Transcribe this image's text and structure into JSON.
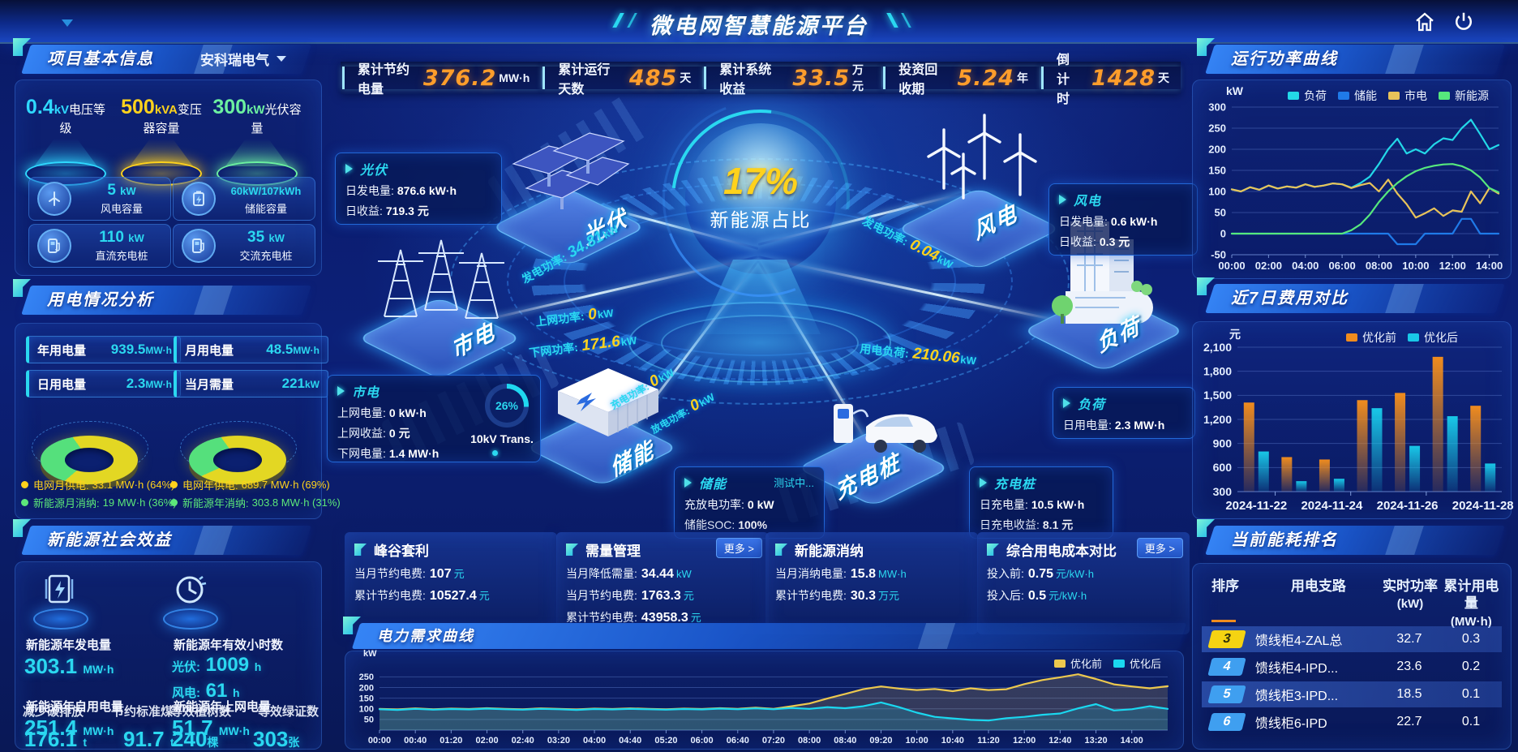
{
  "header": {
    "title": "微电网智慧能源平台"
  },
  "kpi_bar": [
    {
      "label": "累计节约电量",
      "value": "376.2",
      "unit": "MW·h"
    },
    {
      "label": "累计运行天数",
      "value": "485",
      "unit": "天"
    },
    {
      "label": "累计系统收益",
      "value": "33.5",
      "unit": "万元"
    },
    {
      "label": "投资回收期",
      "value": "5.24",
      "unit": "年"
    },
    {
      "label": "倒计时",
      "value": "1428",
      "unit": "天"
    }
  ],
  "project_info": {
    "title": "项目基本信息",
    "company": "安科瑞电气",
    "podiums": [
      {
        "value": "0.4",
        "unit": "kV",
        "label": "电压等级",
        "color": "#2fd9ff"
      },
      {
        "value": "500",
        "unit": "kVA",
        "label": "变压器容量",
        "color": "#ffd21c"
      },
      {
        "value": "300",
        "unit": "kW",
        "label": "光伏容量",
        "color": "#6cf0a0"
      }
    ],
    "cards": [
      {
        "icon": "wind-turbine-icon",
        "value": "5",
        "unit": "kW",
        "label": "风电容量"
      },
      {
        "icon": "battery-icon",
        "value": "60kW/107kWh",
        "unit": "",
        "label": "储能容量"
      },
      {
        "icon": "dc-charger-icon",
        "value": "110",
        "unit": "kW",
        "label": "直流充电桩"
      },
      {
        "icon": "ac-charger-icon",
        "value": "35",
        "unit": "kW",
        "label": "交流充电桩"
      }
    ]
  },
  "usage": {
    "title": "用电情况分析",
    "stats": [
      {
        "label": "年用电量",
        "value": "939.5",
        "unit": "MW·h"
      },
      {
        "label": "月用电量",
        "value": "48.5",
        "unit": "MW·h"
      },
      {
        "label": "日用电量",
        "value": "2.3",
        "unit": "MW·h"
      },
      {
        "label": "当月需量",
        "value": "221",
        "unit": "kW"
      }
    ],
    "legends": [
      {
        "label": "电网月供电:",
        "value": "33.1 MW·h (64%)",
        "color": "#ffd21c"
      },
      {
        "label": "新能源月消纳:",
        "value": "19 MW·h (36%)",
        "color": "#5ce87a"
      },
      {
        "label": "电网年供电:",
        "value": "689.7 MW·h (69%)",
        "color": "#ffd21c"
      },
      {
        "label": "新能源年消纳:",
        "value": "303.8 MW·h (31%)",
        "color": "#5ce87a"
      }
    ]
  },
  "benefits": {
    "title": "新能源社会效益",
    "gen": {
      "label": "新能源年发电量",
      "value": "303.1",
      "unit": "MW·h"
    },
    "hours": {
      "label": "新能源年有效小时数",
      "pv_k": "光伏:",
      "pv_v": "1009",
      "pv_u": "h",
      "wind_k": "风电:",
      "wind_v": "61",
      "wind_u": "h"
    },
    "self": {
      "label": "新能源年自用电量",
      "value": "251.4",
      "unit": "MW·h",
      "alt_label": "减少碳排放",
      "alt_value": "176.1",
      "alt_unit": "t",
      "alt2_label": "节约标准煤",
      "alt2_value": "91.7",
      "alt2_unit": "t"
    },
    "grid": {
      "label": "新能源年上网电量",
      "value": "51.7",
      "unit": "MW·h",
      "alt_label": "等效植树数",
      "alt_value": "240",
      "alt_unit": "棵",
      "alt2_label": "等效绿证数",
      "alt2_value": "303",
      "alt2_unit": "张"
    }
  },
  "center": {
    "percent": "17%",
    "percent_label": "新能源占比",
    "nodes": [
      "光伏",
      "风电",
      "市电",
      "储能",
      "负荷",
      "充电桩"
    ],
    "cards": {
      "pv": {
        "title": "光伏",
        "rows": [
          {
            "k": "日发电量:",
            "v": "876.6 kW·h"
          },
          {
            "k": "日收益:",
            "v": "719.3 元"
          }
        ]
      },
      "wind": {
        "title": "风电",
        "rows": [
          {
            "k": "日发电量:",
            "v": "0.6 kW·h"
          },
          {
            "k": "日收益:",
            "v": "0.3 元"
          }
        ]
      },
      "grid": {
        "title": "市电",
        "rows": [
          {
            "k": "上网电量:",
            "v": "0 kW·h"
          },
          {
            "k": "上网收益:",
            "v": "0 元"
          },
          {
            "k": "下网电量:",
            "v": "1.4 MW·h"
          }
        ],
        "gauge": "26%",
        "gauge_value": 26,
        "gauge_label": "10kV Trans."
      },
      "storage": {
        "title": "储能",
        "status": "测试中...",
        "rows": [
          {
            "k": "充放电功率:",
            "v": "0 kW"
          },
          {
            "k": "储能SOC:",
            "v": "100%"
          }
        ]
      },
      "load": {
        "title": "负荷",
        "rows": [
          {
            "k": "日用电量:",
            "v": "2.3 MW·h"
          }
        ]
      },
      "charger": {
        "title": "充电桩",
        "rows": [
          {
            "k": "日充电量:",
            "v": "10.5 kW·h"
          },
          {
            "k": "日充电收益:",
            "v": "8.1 元"
          }
        ]
      }
    },
    "flows": [
      {
        "label": "发电功率:",
        "value": "34.81",
        "unit": "kW",
        "value_color": "#2bd8f0"
      },
      {
        "label": "上网功率:",
        "value": "0",
        "unit": "kW",
        "value_color": "#ffd21c"
      },
      {
        "label": "下网功率:",
        "value": "171.6",
        "unit": "kW",
        "value_color": "#ffd21c"
      },
      {
        "label": "发电功率:",
        "value": "0.04",
        "unit": "kW",
        "value_color": "#ffd21c"
      },
      {
        "label": "用电负荷:",
        "value": "210.06",
        "unit": "kW",
        "value_color": "#ffd21c"
      },
      {
        "label": "充电功率:",
        "value": "0",
        "unit": "kW",
        "value_color": "#ffd21c"
      },
      {
        "label": "放电功率:",
        "value": "0",
        "unit": "kW",
        "value_color": "#ffd21c"
      }
    ]
  },
  "summary_cards": [
    {
      "title": "峰谷套利",
      "more": null,
      "rows": [
        {
          "k": "当月节约电费:",
          "v": "107",
          "u": "元"
        },
        {
          "k": "累计节约电费:",
          "v": "10527.4",
          "u": "元"
        }
      ]
    },
    {
      "title": "需量管理",
      "more": "更多 >",
      "rows": [
        {
          "k": "当月降低需量:",
          "v": "34.44",
          "u": "kW"
        },
        {
          "k": "当月节约电费:",
          "v": "1763.3",
          "u": "元"
        },
        {
          "k": "累计节约电费:",
          "v": "43958.3",
          "u": "元"
        }
      ]
    },
    {
      "title": "新能源消纳",
      "more": null,
      "rows": [
        {
          "k": "当月消纳电量:",
          "v": "15.8",
          "u": "MW·h"
        },
        {
          "k": "累计节约电费:",
          "v": "30.3",
          "u": "万元"
        }
      ]
    },
    {
      "title": "综合用电成本对比",
      "more": "更多 >",
      "rows": [
        {
          "k": "投入前:",
          "v": "0.75",
          "u": "元/kW·h"
        },
        {
          "k": "投入后:",
          "v": "0.5",
          "u": "元/kW·h"
        }
      ]
    }
  ],
  "power_panel": {
    "title": "运行功率曲线",
    "ylabel": "kW"
  },
  "cost_panel": {
    "title": "近7日费用对比",
    "ylabel": "元"
  },
  "demand_panel": {
    "title": "电力需求曲线",
    "ylabel": "kW"
  },
  "ranking": {
    "title": "当前能耗排名",
    "columns": [
      {
        "t": "排序",
        "s": ""
      },
      {
        "t": "用电支路",
        "s": ""
      },
      {
        "t": "实时功率",
        "s": "(kW)"
      },
      {
        "t": "累计用电量",
        "s": "(MW·h)"
      }
    ],
    "rows": [
      {
        "rank": "3",
        "name": "馈线柜4-ZAL总",
        "power": "32.7",
        "energy": "0.3",
        "rank_style": "yellow",
        "highlight": true
      },
      {
        "rank": "4",
        "name": "馈线柜4-IPD...",
        "power": "23.6",
        "energy": "0.2",
        "rank_style": "blue",
        "highlight": false
      },
      {
        "rank": "5",
        "name": "馈线柜3-IPD...",
        "power": "18.5",
        "energy": "0.1",
        "rank_style": "blue",
        "highlight": true
      },
      {
        "rank": "6",
        "name": "馈线柜6-IPD",
        "power": "22.7",
        "energy": "0.1",
        "rank_style": "blue",
        "highlight": false
      }
    ]
  },
  "chart_data": [
    {
      "id": "power-curve",
      "type": "line",
      "title": "运行功率曲线",
      "ylabel": "kW",
      "ylim": [
        -50,
        300
      ],
      "yticks": [
        -50,
        0,
        50,
        100,
        150,
        200,
        250,
        300
      ],
      "xticks": [
        "00:00",
        "02:00",
        "04:00",
        "06:00",
        "08:00",
        "10:00",
        "12:00",
        "14:00"
      ],
      "xtick_frac": 0.1379,
      "legend_position": "top",
      "grid": true,
      "margins": {
        "l": 46,
        "r": 10,
        "t": 30,
        "b": 24
      },
      "tick_font": 13,
      "series": [
        {
          "name": "负荷",
          "color": "#23d8e8",
          "values": [
            105,
            100,
            110,
            104,
            114,
            107,
            112,
            109,
            117,
            111,
            114,
            119,
            117,
            109,
            120,
            135,
            165,
            200,
            225,
            190,
            200,
            190,
            212,
            226,
            222,
            250,
            270,
            236,
            200,
            210
          ]
        },
        {
          "name": "储能",
          "color": "#1f7ae8",
          "values": [
            0,
            0,
            0,
            0,
            0,
            0,
            0,
            0,
            0,
            0,
            0,
            0,
            0,
            0,
            0,
            0,
            0,
            0,
            -25,
            -25,
            -25,
            0,
            0,
            0,
            0,
            35,
            35,
            0,
            0,
            0
          ]
        },
        {
          "name": "市电",
          "color": "#e8c35a",
          "values": [
            105,
            100,
            110,
            104,
            114,
            107,
            112,
            109,
            117,
            111,
            114,
            119,
            117,
            108,
            115,
            120,
            100,
            128,
            95,
            70,
            38,
            48,
            60,
            42,
            55,
            52,
            100,
            72,
            108,
            95
          ]
        },
        {
          "name": "新能源",
          "color": "#56e87d",
          "values": [
            0,
            0,
            0,
            0,
            0,
            0,
            0,
            0,
            0,
            0,
            0,
            0,
            0,
            8,
            22,
            45,
            75,
            100,
            120,
            136,
            148,
            156,
            161,
            164,
            165,
            160,
            150,
            133,
            108,
            98
          ]
        }
      ]
    },
    {
      "id": "cost-compare",
      "type": "bar",
      "title": "近7日费用对比",
      "ylabel": "元",
      "ylim": [
        300,
        2100
      ],
      "yticks": [
        300,
        600,
        900,
        1200,
        1500,
        1800,
        2100
      ],
      "ytick_labels": [
        "300",
        "600",
        "900",
        "1,200",
        "1,500",
        "1,800",
        "2,100"
      ],
      "categories": [
        "2024-11-22",
        "2024-11-23",
        "2024-11-24",
        "2024-11-25",
        "2024-11-26",
        "2024-11-27",
        "2024-11-28"
      ],
      "xticks": [
        "2024-11-22",
        "2024-11-24",
        "2024-11-26",
        "2024-11-28"
      ],
      "legend_position": "top-right",
      "grid": true,
      "margins": {
        "l": 54,
        "r": 8,
        "t": 26,
        "b": 28
      },
      "tick_font": 14,
      "series": [
        {
          "name": "优化前",
          "color": "#f08c1e",
          "values": [
            1410,
            730,
            700,
            1440,
            1530,
            1980,
            1370
          ]
        },
        {
          "name": "优化后",
          "color": "#19c8e8",
          "values": [
            800,
            430,
            460,
            1340,
            870,
            1240,
            650
          ]
        }
      ]
    },
    {
      "id": "demand-curve",
      "type": "line",
      "title": "电力需求曲线",
      "ylabel": "kW",
      "ylim": [
        0,
        320
      ],
      "yticks": [
        50,
        100,
        150,
        200,
        250
      ],
      "area": true,
      "xticks": [
        "00:00",
        "00:40",
        "01:20",
        "02:00",
        "02:40",
        "03:20",
        "04:00",
        "04:40",
        "05:20",
        "06:00",
        "06:40",
        "07:20",
        "08:00",
        "08:40",
        "09:20",
        "10:00",
        "10:40",
        "11:20",
        "12:00",
        "12:40",
        "13:20",
        "14:00"
      ],
      "xtick_frac": 0.04545,
      "legend_position": "top-right",
      "grid": true,
      "margins": {
        "l": 40,
        "r": 14,
        "t": 12,
        "b": 20
      },
      "tick_font": 11,
      "series": [
        {
          "name": "优化前",
          "color": "#ecc84e",
          "values": [
            100,
            97,
            102,
            98,
            101,
            99,
            103,
            100,
            98,
            102,
            100,
            97,
            101,
            99,
            102,
            100,
            98,
            101,
            99,
            103,
            100,
            105,
            100,
            112,
            125,
            148,
            170,
            192,
            205,
            195,
            188,
            193,
            183,
            196,
            188,
            192,
            216,
            235,
            248,
            262,
            240,
            215,
            205,
            196,
            206
          ]
        },
        {
          "name": "优化后",
          "color": "#1ad8f0",
          "values": [
            98,
            95,
            100,
            96,
            99,
            97,
            101,
            98,
            96,
            100,
            98,
            95,
            99,
            97,
            100,
            98,
            96,
            99,
            97,
            101,
            98,
            102,
            98,
            104,
            100,
            108,
            103,
            112,
            130,
            108,
            82,
            62,
            55,
            48,
            45,
            56,
            62,
            72,
            78,
            102,
            122,
            92,
            98,
            112,
            100
          ]
        }
      ]
    },
    {
      "id": "donut-month",
      "type": "pie",
      "slices": [
        {
          "name": "电网月供电",
          "value": 64,
          "color": "#e3d723"
        },
        {
          "name": "新能源月消纳",
          "value": 36,
          "color": "#55e07c"
        }
      ]
    },
    {
      "id": "donut-year",
      "type": "pie",
      "slices": [
        {
          "name": "电网年供电",
          "value": 69,
          "color": "#e3d723"
        },
        {
          "name": "新能源年消纳",
          "value": 31,
          "color": "#55e07c"
        }
      ]
    }
  ]
}
